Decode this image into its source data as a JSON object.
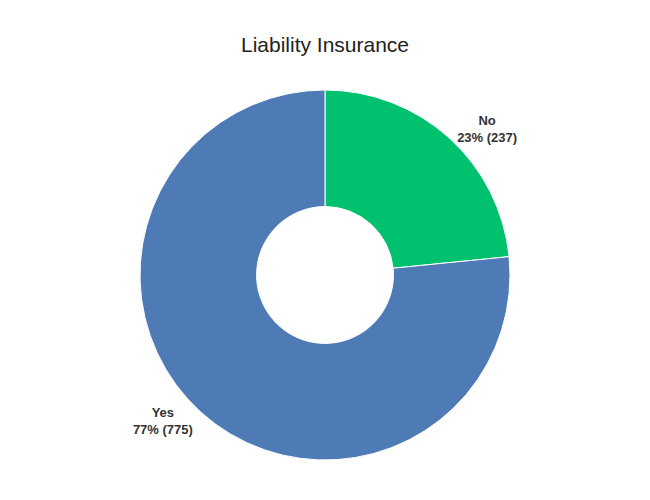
{
  "chart_data": {
    "type": "pie",
    "title": "Liability Insurance",
    "categories": [
      "No",
      "Yes"
    ],
    "values": [
      237,
      775
    ],
    "value_labels": [
      "23% (237)",
      "77% (775)"
    ],
    "colors": [
      "#00c16e",
      "#4e7ab5"
    ],
    "data_labels": true
  }
}
